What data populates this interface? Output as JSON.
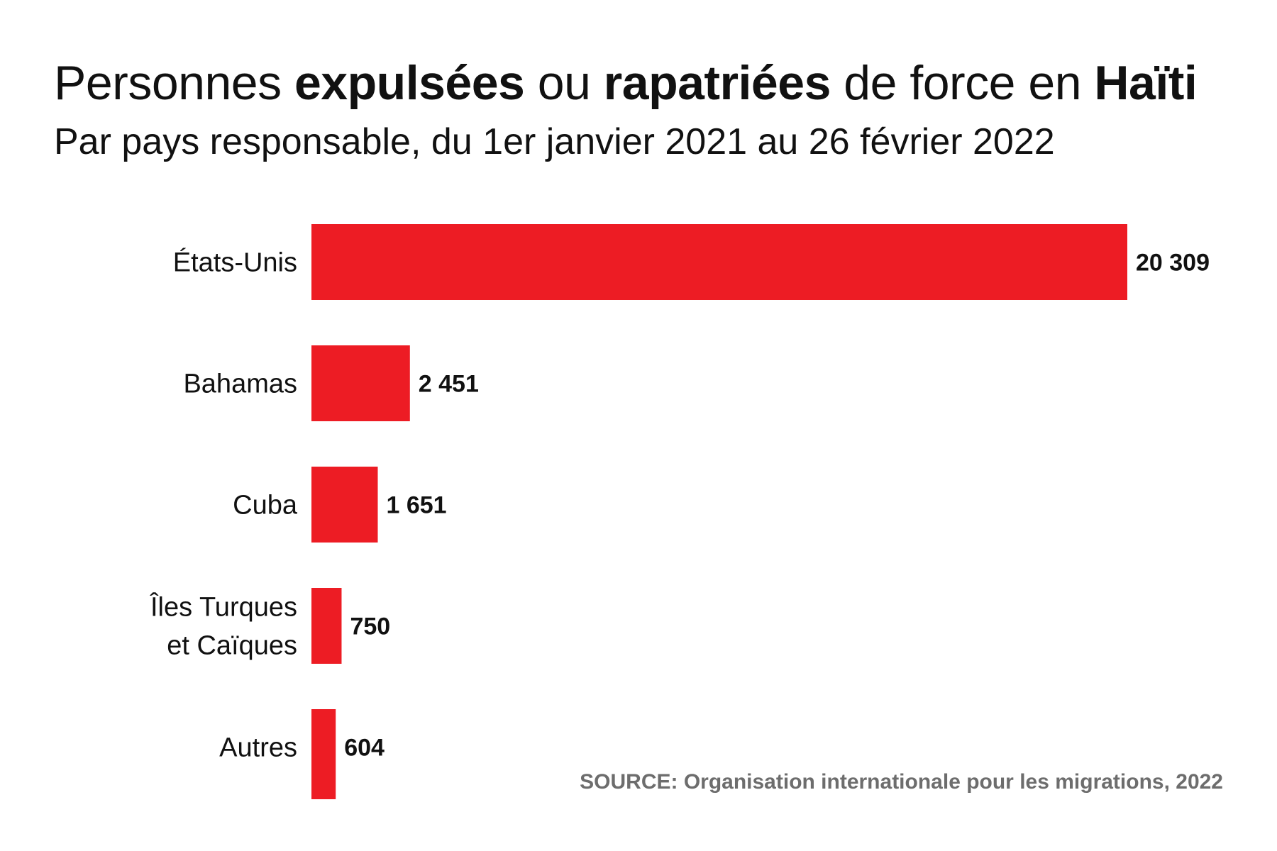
{
  "title_parts": [
    {
      "text": "Personnes ",
      "bold": false
    },
    {
      "text": "expulsées",
      "bold": true
    },
    {
      "text": " ou ",
      "bold": false
    },
    {
      "text": "rapatriées",
      "bold": true
    },
    {
      "text": " de force en ",
      "bold": false
    },
    {
      "text": "Haïti",
      "bold": true
    }
  ],
  "subtitle": "Par pays responsable, du 1er janvier 2021 au 26 février 2022",
  "source": "SOURCE: Organisation internationale pour les migrations, 2022",
  "chart_data": {
    "type": "bar",
    "orientation": "horizontal",
    "title": "Personnes expulsées ou rapatriées de force en Haïti",
    "subtitle": "Par pays responsable, du 1er janvier 2021 au 26 février 2022",
    "categories": [
      [
        "États-Unis"
      ],
      [
        "Bahamas"
      ],
      [
        "Cuba"
      ],
      [
        "Îles Turques",
        "et Caïques"
      ],
      [
        "Autres"
      ]
    ],
    "values": [
      20309,
      2451,
      1651,
      750,
      604
    ],
    "value_labels": [
      "20 309",
      "2 451",
      "1 651",
      "750",
      "604"
    ],
    "xlim": [
      0,
      20309
    ],
    "grid": false,
    "bar_color": "#ed1c24"
  }
}
